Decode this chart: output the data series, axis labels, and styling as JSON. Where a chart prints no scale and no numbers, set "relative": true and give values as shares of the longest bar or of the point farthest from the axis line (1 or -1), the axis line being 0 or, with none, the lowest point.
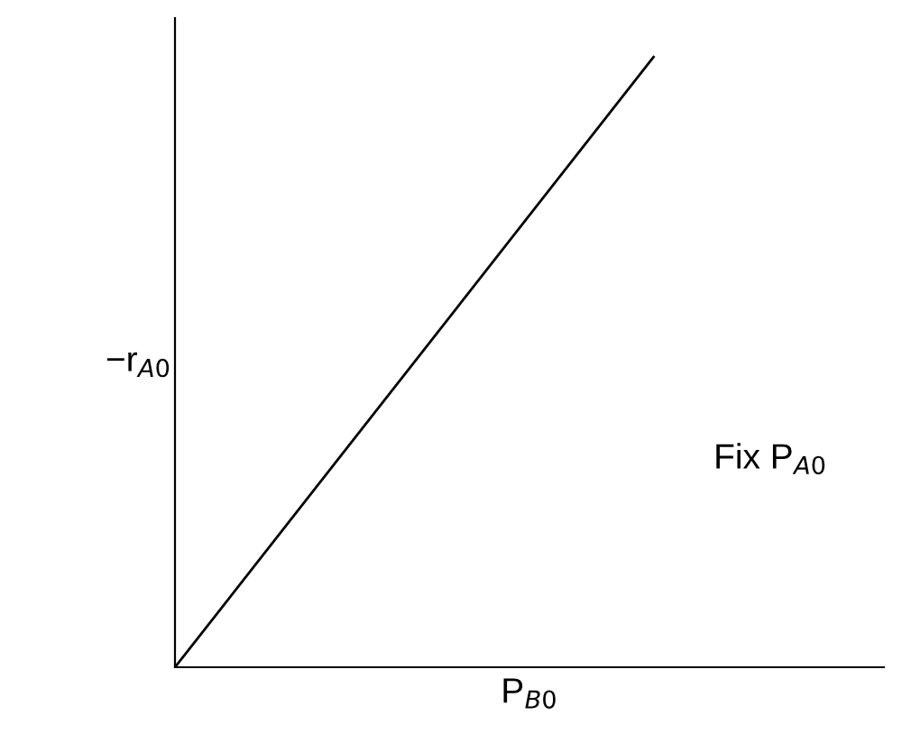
{
  "chart_data": {
    "type": "line",
    "relative": true,
    "categories": [
      null,
      null
    ],
    "series": [
      {
        "color": "#000000",
        "values": [
          0,
          1
        ]
      }
    ],
    "xlabel": "P$_{B0}$",
    "ylabel": "−r$_{A0}$",
    "annotations": [
      "Fix P$_{A0}$"
    ],
    "marker": "none",
    "line_style": "solid"
  }
}
